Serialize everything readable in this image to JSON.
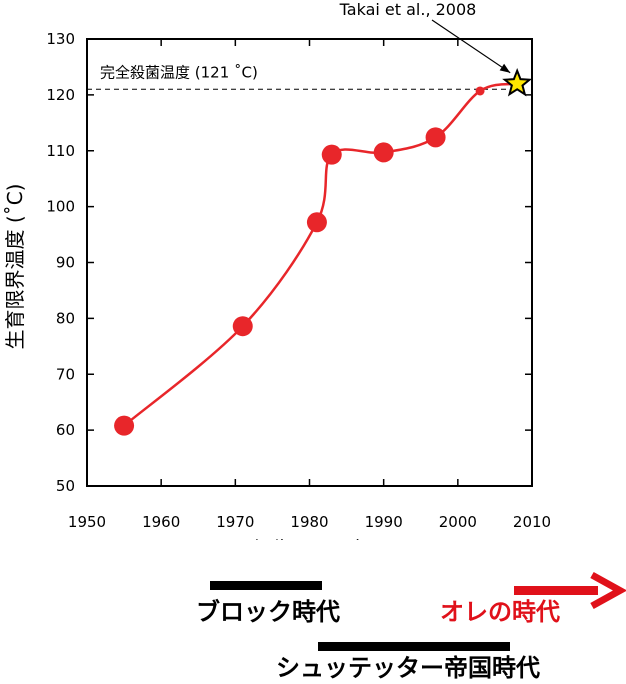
{
  "chart_data": {
    "type": "line",
    "title": "",
    "xlabel": "報告された年",
    "ylabel": "生育限界温度 (˚C)",
    "xlim": [
      1950,
      2010
    ],
    "ylim": [
      50,
      130
    ],
    "x_ticks": [
      "1950",
      "1960",
      "1970",
      "1980",
      "1990",
      "2000",
      "2010"
    ],
    "y_ticks": [
      "50",
      "60",
      "70",
      "80",
      "90",
      "100",
      "110",
      "120",
      "130"
    ],
    "series": [
      {
        "name": "",
        "color": "#e8262a",
        "x": [
          1955,
          1971,
          1981,
          1983,
          1990,
          1997,
          2003,
          2008
        ],
        "y": [
          60.8,
          78.6,
          97.2,
          109.3,
          109.7,
          112.4,
          120.7,
          122
        ],
        "marker_sizes": [
          "large",
          "large",
          "large",
          "large",
          "large",
          "large",
          "small",
          "star"
        ]
      }
    ],
    "reference_line": {
      "y": 121,
      "label": "完全殺菌温度 (121 ˚C)",
      "style": "dashed"
    },
    "annotation": {
      "text": "Takai et al., 2008",
      "x": 2008,
      "y": 122,
      "marker": "star",
      "marker_color": "#ffe600"
    },
    "grid": false
  },
  "eras": {
    "block": {
      "label": "ブロック時代",
      "color": "#000000"
    },
    "shuttetter": {
      "label": "シュッテッター帝国時代",
      "color": "#000000"
    },
    "ore": {
      "label": "オレの時代",
      "color": "#e0111a"
    }
  }
}
